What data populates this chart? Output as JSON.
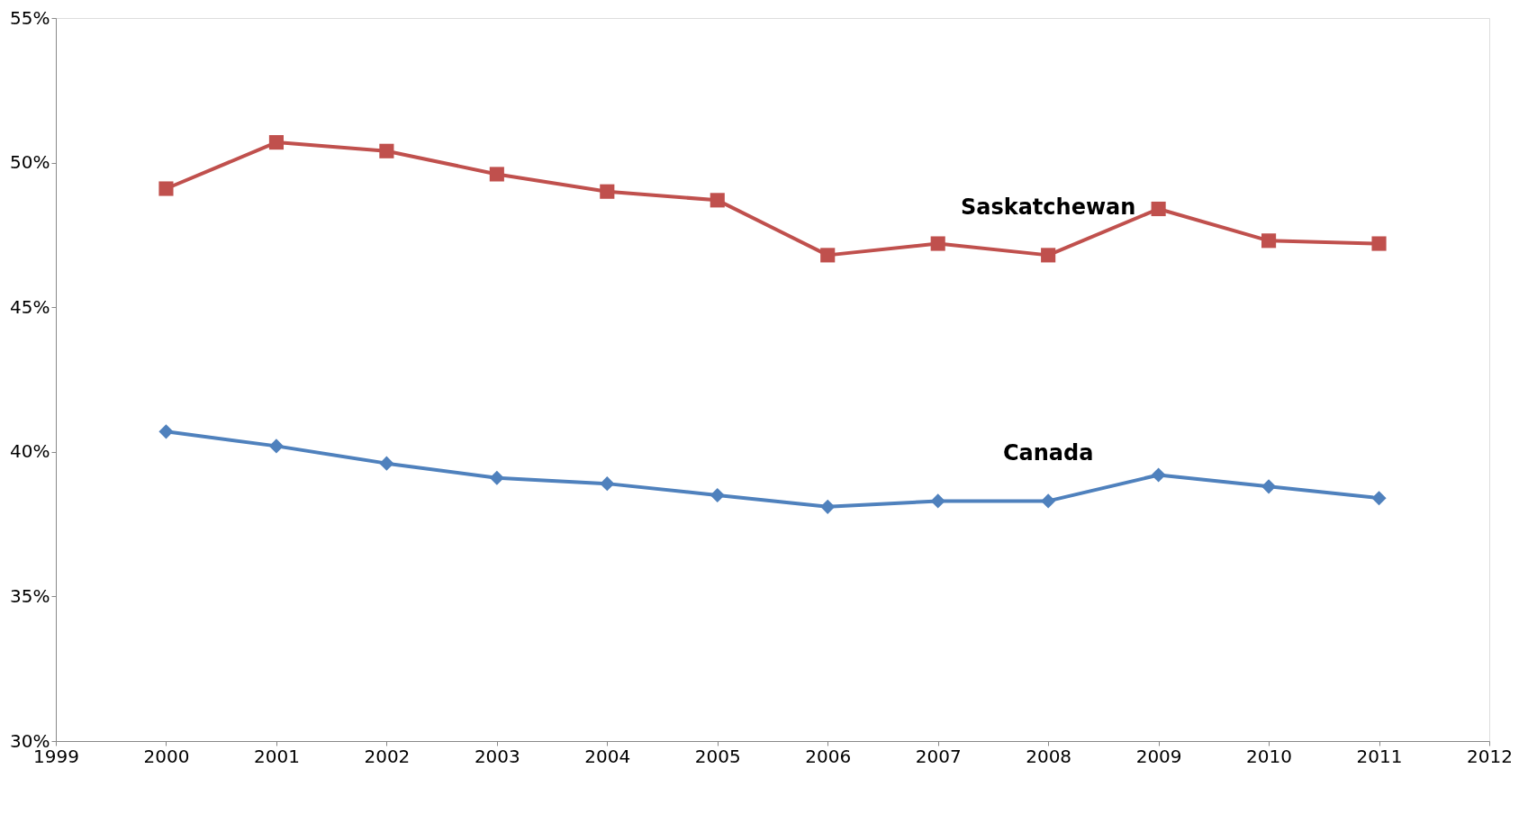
{
  "chart_data": {
    "type": "line",
    "x": [
      2000,
      2001,
      2002,
      2003,
      2004,
      2005,
      2006,
      2007,
      2008,
      2009,
      2010,
      2011
    ],
    "series": [
      {
        "name": "Saskatchewan",
        "color": "#c0504d",
        "marker": "square",
        "values": [
          49.1,
          50.7,
          50.4,
          49.6,
          49.0,
          48.7,
          46.8,
          47.2,
          46.8,
          48.4,
          47.3,
          47.2
        ]
      },
      {
        "name": "Canada",
        "color": "#4f81bd",
        "marker": "diamond",
        "values": [
          40.7,
          40.2,
          39.6,
          39.1,
          38.9,
          38.5,
          38.1,
          38.3,
          38.3,
          39.2,
          38.8,
          38.4
        ]
      }
    ],
    "xlim": [
      1999,
      2012
    ],
    "xticks": [
      1999,
      2000,
      2001,
      2002,
      2003,
      2004,
      2005,
      2006,
      2007,
      2008,
      2009,
      2010,
      2011,
      2012
    ],
    "ylim": [
      30,
      55
    ],
    "yticks": [
      {
        "value": 30,
        "label": "30%"
      },
      {
        "value": 35,
        "label": "35%"
      },
      {
        "value": 40,
        "label": "40%"
      },
      {
        "value": 45,
        "label": "45%"
      },
      {
        "value": 50,
        "label": "50%"
      },
      {
        "value": 55,
        "label": "55%"
      }
    ],
    "grid": false,
    "legend": false,
    "line_style": "solid"
  }
}
